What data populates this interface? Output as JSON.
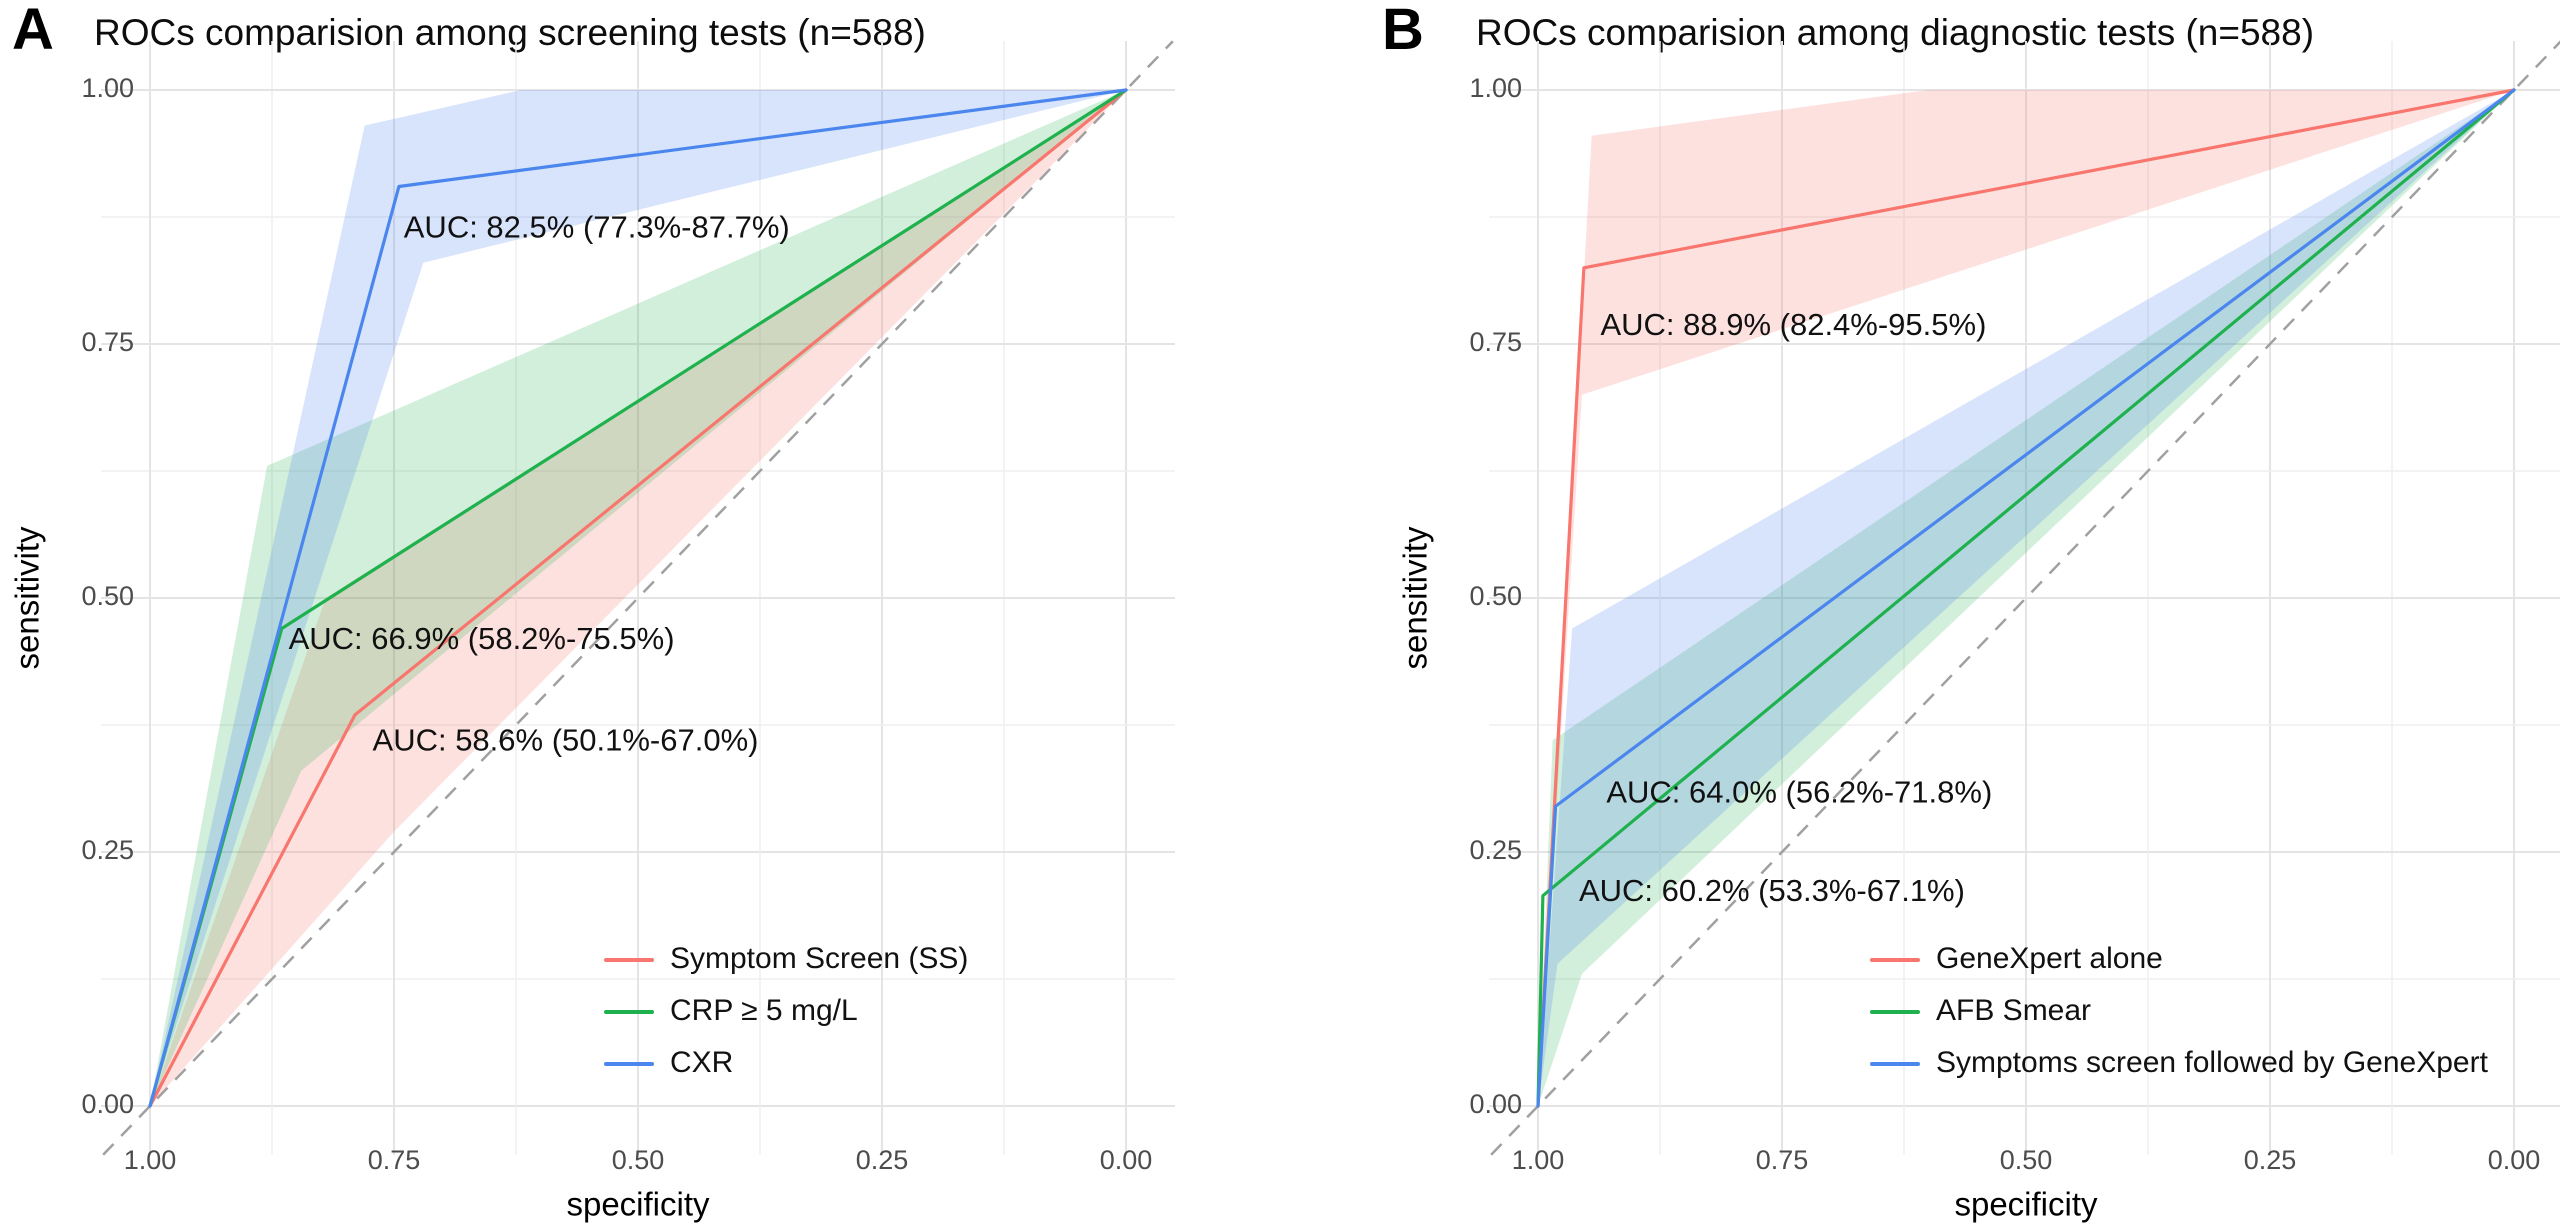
{
  "chart_data": [
    {
      "type": "line",
      "panel_label": "A",
      "title": "ROCs comparision among screening tests (n=588)",
      "xlabel": "specificity",
      "ylabel": "sensitivity",
      "x_axis": {
        "reversed": true,
        "range": [
          0,
          1
        ],
        "ticks": [
          1.0,
          0.75,
          0.5,
          0.25,
          0.0
        ],
        "tick_labels": [
          "1.00",
          "0.75",
          "0.50",
          "0.25",
          "0.00"
        ]
      },
      "y_axis": {
        "range": [
          0,
          1
        ],
        "ticks": [
          0.0,
          0.25,
          0.5,
          0.75,
          1.0
        ],
        "tick_labels": [
          "0.00",
          "0.25",
          "0.50",
          "0.75",
          "1.00"
        ]
      },
      "grid": {
        "major_step": 0.25,
        "minor_step": 0.125,
        "major_color": "#e4e4e4",
        "minor_color": "#efefef"
      },
      "reference_line": {
        "type": "diagonal-chance-line",
        "style": "dashed",
        "color": "#a0a0a0"
      },
      "legend_position": "bottom-right-inside",
      "series": [
        {
          "name": "Symptom Screen (SS)",
          "color": "#f8766d",
          "band_opacity": 0.22,
          "points": [
            [
              1.0,
              0.0
            ],
            [
              0.79,
              0.385
            ],
            [
              0.0,
              1.0
            ]
          ],
          "ci_band_upper": [
            [
              1.0,
              0.0
            ],
            [
              0.82,
              0.5
            ],
            [
              0.0,
              1.0
            ]
          ],
          "ci_band_lower": [
            [
              1.0,
              0.0
            ],
            [
              0.75,
              0.27
            ],
            [
              0.0,
              1.0
            ]
          ],
          "auc": "58.6%",
          "auc_ci": "50.1%-67.0%",
          "auc_label": "AUC: 58.6% (50.1%-67.0%)",
          "auc_label_anchor": [
            0.772,
            0.358
          ]
        },
        {
          "name": "CRP ≥ 5 mg/L",
          "color": "#1fb14d",
          "band_opacity": 0.2,
          "points": [
            [
              1.0,
              0.0
            ],
            [
              0.865,
              0.47
            ],
            [
              0.0,
              1.0
            ]
          ],
          "ci_band_upper": [
            [
              1.0,
              0.0
            ],
            [
              0.88,
              0.63
            ],
            [
              0.0,
              1.0
            ]
          ],
          "ci_band_lower": [
            [
              1.0,
              0.0
            ],
            [
              0.845,
              0.33
            ],
            [
              0.0,
              1.0
            ]
          ],
          "auc": "66.9%",
          "auc_ci": "58.2%-75.5%",
          "auc_label": "AUC: 66.9% (58.2%-75.5%)",
          "auc_label_anchor": [
            0.858,
            0.458
          ]
        },
        {
          "name": "CXR",
          "color": "#4b86ee",
          "band_opacity": 0.22,
          "points": [
            [
              1.0,
              0.0
            ],
            [
              0.745,
              0.905
            ],
            [
              0.0,
              1.0
            ]
          ],
          "ci_band_upper": [
            [
              1.0,
              0.0
            ],
            [
              0.78,
              0.965
            ],
            [
              0.62,
              1.0
            ],
            [
              0.0,
              1.0
            ]
          ],
          "ci_band_lower": [
            [
              1.0,
              0.0
            ],
            [
              0.72,
              0.83
            ],
            [
              0.0,
              1.0
            ]
          ],
          "auc": "82.5%",
          "auc_ci": "77.3%-87.7%",
          "auc_label": "AUC: 82.5% (77.3%-87.7%)",
          "auc_label_anchor": [
            0.74,
            0.863
          ]
        }
      ]
    },
    {
      "type": "line",
      "panel_label": "B",
      "title": "ROCs comparision among diagnostic tests (n=588)",
      "xlabel": "specificity",
      "ylabel": "sensitivity",
      "x_axis": {
        "reversed": true,
        "range": [
          0,
          1
        ],
        "ticks": [
          1.0,
          0.75,
          0.5,
          0.25,
          0.0
        ],
        "tick_labels": [
          "1.00",
          "0.75",
          "0.50",
          "0.25",
          "0.00"
        ]
      },
      "y_axis": {
        "range": [
          0,
          1
        ],
        "ticks": [
          0.0,
          0.25,
          0.5,
          0.75,
          1.0
        ],
        "tick_labels": [
          "0.00",
          "0.25",
          "0.50",
          "0.75",
          "1.00"
        ]
      },
      "grid": {
        "major_step": 0.25,
        "minor_step": 0.125,
        "major_color": "#e4e4e4",
        "minor_color": "#efefef"
      },
      "reference_line": {
        "type": "diagonal-chance-line",
        "style": "dashed",
        "color": "#a0a0a0"
      },
      "legend_position": "bottom-right-inside",
      "series": [
        {
          "name": "GeneXpert alone",
          "color": "#f8766d",
          "band_opacity": 0.22,
          "points": [
            [
              1.0,
              0.0
            ],
            [
              0.953,
              0.825
            ],
            [
              0.0,
              1.0
            ]
          ],
          "ci_band_upper": [
            [
              1.0,
              0.0
            ],
            [
              0.945,
              0.955
            ],
            [
              0.6,
              1.0
            ],
            [
              0.0,
              1.0
            ]
          ],
          "ci_band_lower": [
            [
              1.0,
              0.0
            ],
            [
              0.955,
              0.7
            ],
            [
              0.0,
              1.0
            ]
          ],
          "auc": "88.9%",
          "auc_ci": "82.4%-95.5%",
          "auc_label": "AUC: 88.9% (82.4%-95.5%)",
          "auc_label_anchor": [
            0.936,
            0.767
          ]
        },
        {
          "name": "AFB Smear",
          "color": "#1fb14d",
          "band_opacity": 0.2,
          "points": [
            [
              1.0,
              0.0
            ],
            [
              0.995,
              0.207
            ],
            [
              0.0,
              1.0
            ]
          ],
          "ci_band_upper": [
            [
              1.0,
              0.0
            ],
            [
              0.985,
              0.36
            ],
            [
              0.0,
              1.0
            ]
          ],
          "ci_band_lower": [
            [
              1.0,
              0.0
            ],
            [
              0.955,
              0.13
            ],
            [
              0.0,
              1.0
            ]
          ],
          "auc": "60.2%",
          "auc_ci": "53.3%-67.1%",
          "auc_label": "AUC: 60.2% (53.3%-67.1%)",
          "auc_label_anchor": [
            0.958,
            0.21
          ]
        },
        {
          "name": "Symptoms screen followed by GeneXpert",
          "color": "#4b86ee",
          "band_opacity": 0.22,
          "points": [
            [
              1.0,
              0.0
            ],
            [
              0.982,
              0.295
            ],
            [
              0.0,
              1.0
            ]
          ],
          "ci_band_upper": [
            [
              1.0,
              0.0
            ],
            [
              0.965,
              0.47
            ],
            [
              0.0,
              1.0
            ]
          ],
          "ci_band_lower": [
            [
              1.0,
              0.0
            ],
            [
              0.98,
              0.14
            ],
            [
              0.0,
              1.0
            ]
          ],
          "auc": "64.0%",
          "auc_ci": "56.2%-71.8%",
          "auc_label": "AUC: 64.0% (56.2%-71.8%)",
          "auc_label_anchor": [
            0.93,
            0.307
          ]
        }
      ]
    }
  ]
}
